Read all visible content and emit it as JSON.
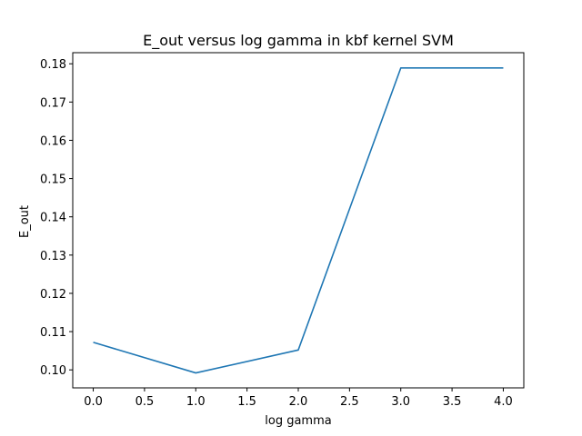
{
  "chart_data": {
    "type": "line",
    "title": "E_out versus log gamma in kbf kernel SVM",
    "xlabel": "log gamma",
    "ylabel": "E_out",
    "xlim": [
      -0.2,
      4.2
    ],
    "ylim": [
      0.0953,
      0.1829
    ],
    "xticks": [
      "0.0",
      "0.5",
      "1.0",
      "1.5",
      "2.0",
      "2.5",
      "3.0",
      "3.5",
      "4.0"
    ],
    "yticks": [
      "0.10",
      "0.11",
      "0.12",
      "0.13",
      "0.14",
      "0.15",
      "0.16",
      "0.17",
      "0.18"
    ],
    "grid": false,
    "series": [
      {
        "color": "#1f77b4",
        "x": [
          0,
          1,
          2,
          3,
          4
        ],
        "y": [
          0.1072,
          0.0992,
          0.1052,
          0.1789,
          0.1789
        ]
      }
    ]
  }
}
